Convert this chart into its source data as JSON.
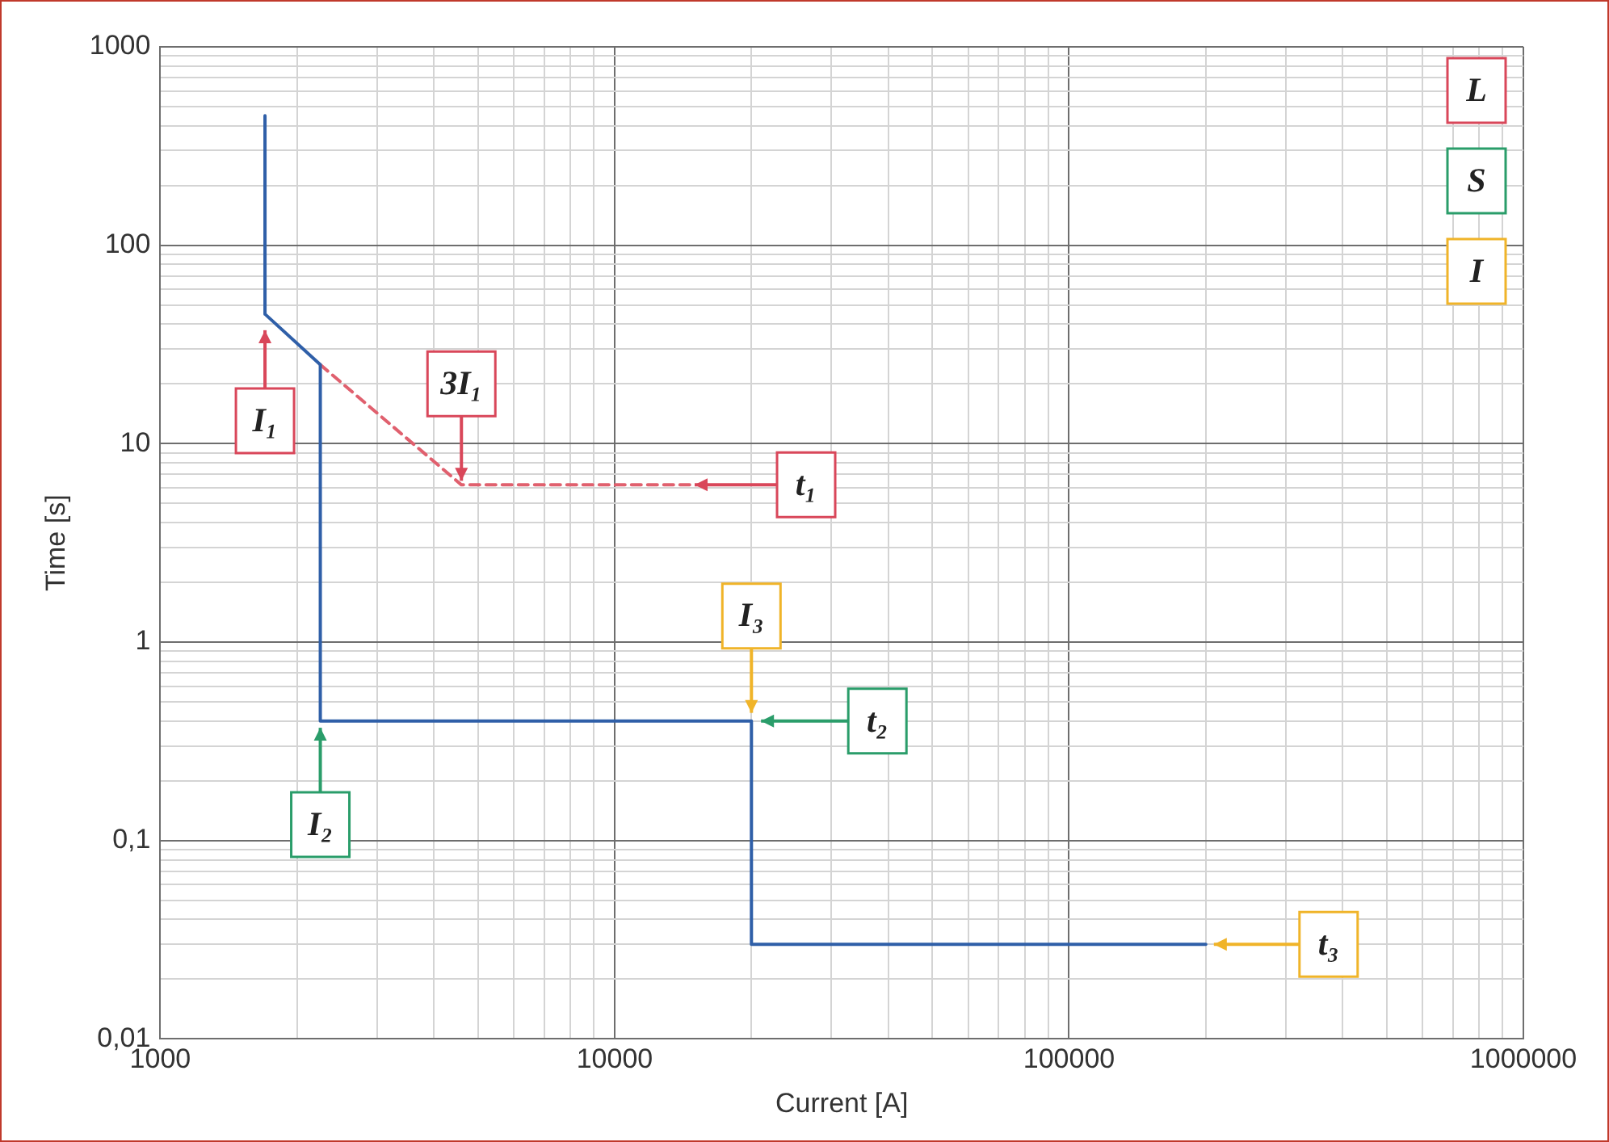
{
  "chart_data": {
    "type": "line",
    "xlabel": "Current [A]",
    "ylabel": "Time [s]",
    "log": "xy",
    "grid": true,
    "legend": false,
    "marker": "none",
    "xlim": [
      1000,
      1000000
    ],
    "xticks": [
      1000,
      10000,
      100000,
      1000000
    ],
    "ylim": [
      0.01,
      1000
    ],
    "yticks": [
      {
        "value": 0.01,
        "label": "0,01"
      },
      {
        "value": 0.1,
        "label": "0,1"
      },
      1,
      10,
      100,
      1000
    ],
    "series": [
      {
        "color": "#2f5fa8",
        "line_style": "solid",
        "x": [
          1700,
          1700,
          2250,
          2250,
          20000,
          20000,
          200000
        ],
        "values": [
          450,
          45,
          25,
          0.4,
          0.4,
          0.03,
          0.03
        ]
      },
      {
        "color": "#e0606e",
        "line_style": "dashed",
        "x": [
          2250,
          4600,
          15000
        ],
        "values": [
          25,
          6.2,
          6.2
        ]
      }
    ],
    "annotations": [
      {
        "text": "I₁",
        "x": 1700,
        "y": 45
      },
      {
        "text": "3I₁",
        "x": 4600,
        "y": 6.5
      },
      {
        "text": "t₁",
        "x": 15000,
        "y": 6.2
      },
      {
        "text": "I₃",
        "x": 20000,
        "y": 0.44
      },
      {
        "text": "t₂",
        "x": 21000,
        "y": 0.4
      },
      {
        "text": "I₂",
        "x": 2250,
        "y": 0.37
      },
      {
        "text": "t₃",
        "x": 200000,
        "y": 0.03
      },
      "L",
      "S",
      "I"
    ]
  }
}
